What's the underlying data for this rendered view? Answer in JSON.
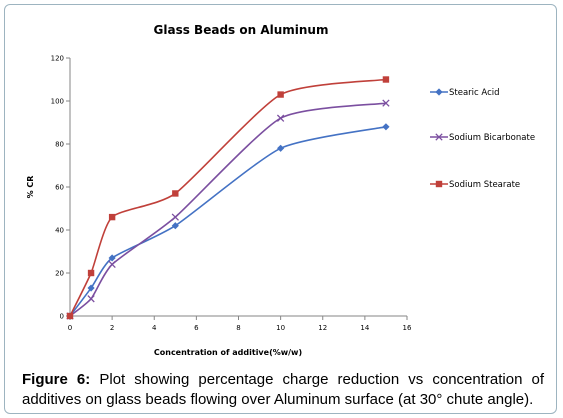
{
  "chart_data": {
    "type": "line",
    "title": "Glass Beads on Aluminum",
    "xlabel": "Concentration of additive(%w/w)",
    "ylabel": "% CR",
    "xlim": [
      0,
      16
    ],
    "ylim": [
      0,
      120
    ],
    "x_ticks": [
      "0",
      "2",
      "4",
      "6",
      "8",
      "10",
      "12",
      "14",
      "16"
    ],
    "y_ticks": [
      "0",
      "20",
      "40",
      "60",
      "80",
      "100",
      "120"
    ],
    "grid": false,
    "legend_position": "right",
    "smooth": true,
    "series": [
      {
        "name": "Stearic Acid",
        "color": "#4472c4",
        "marker": "diamond",
        "x": [
          0,
          1,
          2,
          5,
          10,
          15
        ],
        "y": [
          0,
          13,
          27,
          42,
          78,
          88
        ]
      },
      {
        "name": "Sodium Bicarbonate",
        "color": "#7b4fa0",
        "marker": "x",
        "x": [
          0,
          1,
          2,
          5,
          10,
          15
        ],
        "y": [
          0,
          8,
          24,
          46,
          92,
          99
        ]
      },
      {
        "name": "Sodium Stearate",
        "color": "#c0403a",
        "marker": "square",
        "x": [
          0,
          1,
          2,
          5,
          10,
          15
        ],
        "y": [
          0,
          20,
          46,
          57,
          103,
          110
        ]
      }
    ]
  },
  "caption": {
    "label": "Figure 6:",
    "text": "Plot showing percentage charge reduction vs concentration of additives on glass beads flowing over Aluminum surface (at 30° chute angle)."
  }
}
